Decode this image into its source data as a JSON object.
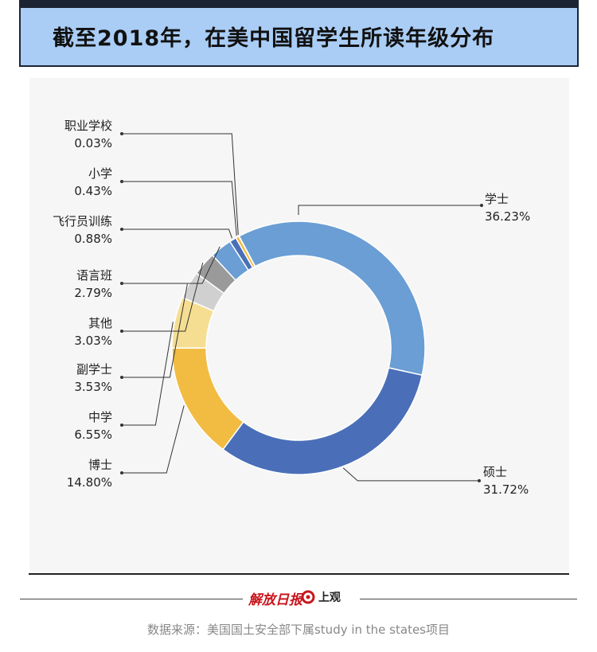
{
  "title": "截至2018年，在美中国留学生所读年级分布",
  "chart_data": {
    "type": "pie",
    "donut": true,
    "slices": [
      {
        "name": "学士",
        "value": 36.23,
        "label": "36.23%",
        "color": "#6a9ed4"
      },
      {
        "name": "硕士",
        "value": 31.72,
        "label": "31.72%",
        "color": "#4a6fb8"
      },
      {
        "name": "博士",
        "value": 14.8,
        "label": "14.80%",
        "color": "#f2bc42"
      },
      {
        "name": "中学",
        "value": 6.55,
        "label": "6.55%",
        "color": "#f5de92"
      },
      {
        "name": "副学士",
        "value": 3.53,
        "label": "3.53%",
        "color": "#d0d0d0"
      },
      {
        "name": "其他",
        "value": 3.03,
        "label": "3.03%",
        "color": "#9a9a9a"
      },
      {
        "name": "语言班",
        "value": 2.79,
        "label": "2.79%",
        "color": "#6a9ed4"
      },
      {
        "name": "飞行员训练",
        "value": 0.88,
        "label": "0.88%",
        "color": "#4a6fb8"
      },
      {
        "name": "小学",
        "value": 0.43,
        "label": "0.43%",
        "color": "#f2bc42"
      },
      {
        "name": "职业学校",
        "value": 0.03,
        "label": "0.03%",
        "color": "#f5de92"
      }
    ]
  },
  "footer": {
    "logo_a": "解放日报",
    "logo_b": "上观",
    "source": "数据来源：美国国土安全部下属study in the states项目"
  },
  "colors": {
    "title_bg": "#aacdf5",
    "dark": "#1c2433",
    "panel_bg": "#f6f6f6",
    "logo_red": "#c8161d"
  }
}
